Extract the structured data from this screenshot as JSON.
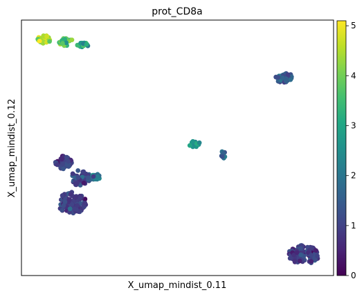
{
  "chart_data": {
    "type": "scatter",
    "title": "prot_CD8a",
    "xlabel": "X_umap_mindist_0.11",
    "ylabel": "X_umap_mindist_0.12",
    "xticks": [],
    "yticks": [],
    "x_range": [
      0,
      100
    ],
    "y_range": [
      0,
      100
    ],
    "grid": false,
    "colormap": "viridis",
    "colorbar": {
      "range": [
        0,
        5.1
      ],
      "ticks": [
        "0",
        "1",
        "2",
        "3",
        "4",
        "5"
      ],
      "tick_values": [
        0,
        1,
        2,
        3,
        4,
        5
      ],
      "stops": [
        "#440154",
        "#482475",
        "#414487",
        "#355f8d",
        "#2a788e",
        "#21918c",
        "#22a884",
        "#44bf70",
        "#7ad151",
        "#bddf26",
        "#fde725"
      ]
    },
    "clusters": [
      {
        "cx": 7.5,
        "cy": 92.4,
        "rx": 2.3,
        "ry": 1.7,
        "n": 26,
        "value": 4.5,
        "spread": 0.4
      },
      {
        "cx": 14.3,
        "cy": 91.4,
        "rx": 2.4,
        "ry": 1.6,
        "n": 26,
        "value": 3.6,
        "spread": 0.5
      },
      {
        "cx": 19.8,
        "cy": 90.3,
        "rx": 2.0,
        "ry": 0.8,
        "n": 16,
        "value": 2.8,
        "spread": 0.5
      },
      {
        "cx": 84.1,
        "cy": 77.5,
        "rx": 2.7,
        "ry": 2.0,
        "n": 40,
        "value": 1.4,
        "spread": 0.3
      },
      {
        "cx": 55.5,
        "cy": 51.5,
        "rx": 1.9,
        "ry": 1.2,
        "n": 22,
        "value": 2.7,
        "spread": 0.3
      },
      {
        "cx": 64.5,
        "cy": 47.2,
        "rx": 1.1,
        "ry": 1.4,
        "n": 12,
        "value": 1.7,
        "spread": 0.4
      },
      {
        "cx": 13.5,
        "cy": 44.3,
        "rx": 2.6,
        "ry": 2.7,
        "n": 52,
        "value": 1.0,
        "spread": 0.3
      },
      {
        "cx": 19.0,
        "cy": 38.2,
        "rx": 3.2,
        "ry": 3.2,
        "n": 55,
        "value": 1.2,
        "spread": 0.4
      },
      {
        "cx": 24.0,
        "cy": 38.5,
        "rx": 1.6,
        "ry": 1.2,
        "n": 14,
        "value": 1.9,
        "spread": 0.3
      },
      {
        "cx": 16.2,
        "cy": 28.5,
        "rx": 4.6,
        "ry": 4.2,
        "n": 110,
        "value": 0.9,
        "spread": 0.3
      },
      {
        "cx": 90.5,
        "cy": 8.2,
        "rx": 5.0,
        "ry": 3.7,
        "n": 105,
        "value": 0.9,
        "spread": 0.3
      }
    ]
  }
}
